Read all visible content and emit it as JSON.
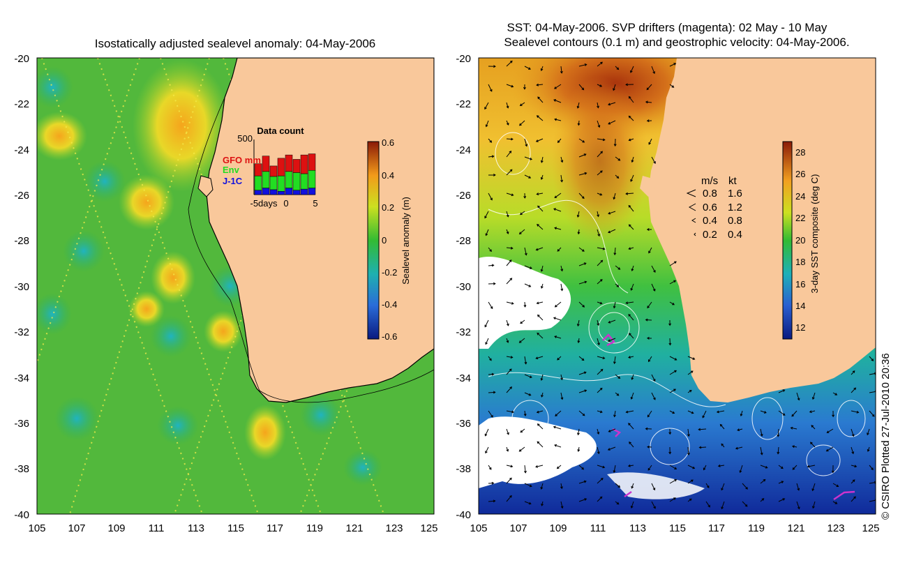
{
  "colors": {
    "land": "#f9c89b",
    "coast": "#000000",
    "sla_base": "#33b43a",
    "sst_white": "#ffffff",
    "drifter": "#cc33cc"
  },
  "left_panel": {
    "title": "Isostatically adjusted sealevel anomaly: 04-May-2006",
    "y_ticks": [
      "-20",
      "-22",
      "-24",
      "-26",
      "-28",
      "-30",
      "-32",
      "-34",
      "-36",
      "-38",
      "-40"
    ],
    "x_ticks": [
      "105",
      "107",
      "109",
      "111",
      "113",
      "115",
      "117",
      "119",
      "121",
      "123",
      "125"
    ],
    "colorbar": {
      "label": "Sealevel anomaly (m)",
      "ticks": [
        "0.6",
        "0.4",
        "0.2",
        "0",
        "-0.2",
        "-0.4",
        "-0.6"
      ],
      "range": [
        -0.6,
        0.6
      ]
    },
    "inset": {
      "title": "Data count",
      "y_max_label": "500",
      "x_labels": [
        "-5days",
        "0",
        "5"
      ],
      "legend": [
        {
          "name": "GFO mm",
          "color": "#dd1111"
        },
        {
          "name": "Env",
          "color": "#22dd22"
        },
        {
          "name": "J-1C",
          "color": "#1111dd"
        }
      ],
      "bars": [
        {
          "gfo": 110,
          "env": 130,
          "j1c": 40
        },
        {
          "gfo": 140,
          "env": 150,
          "j1c": 60
        },
        {
          "gfo": 95,
          "env": 120,
          "j1c": 45
        },
        {
          "gfo": 160,
          "env": 140,
          "j1c": 30
        },
        {
          "gfo": 150,
          "env": 150,
          "j1c": 60
        },
        {
          "gfo": 120,
          "env": 160,
          "j1c": 40
        },
        {
          "gfo": 170,
          "env": 140,
          "j1c": 50
        },
        {
          "gfo": 150,
          "env": 160,
          "j1c": 60
        }
      ]
    }
  },
  "right_panel": {
    "title_line1": "SST: 04-May-2006. SVP drifters (magenta): 02 May - 10 May",
    "title_line2": "Sealevel contours (0.1 m) and geostrophic velocity: 04-May-2006.",
    "y_ticks": [
      "-20",
      "-22",
      "-24",
      "-26",
      "-28",
      "-30",
      "-32",
      "-34",
      "-36",
      "-38",
      "-40"
    ],
    "x_ticks": [
      "105",
      "107",
      "109",
      "111",
      "113",
      "115",
      "117",
      "119",
      "121",
      "123",
      "125"
    ],
    "colorbar": {
      "label": "3-day SST composite (deg C)",
      "ticks": [
        "28",
        "26",
        "24",
        "22",
        "20",
        "18",
        "16",
        "14",
        "12"
      ],
      "range": [
        11,
        29
      ]
    },
    "velocity_legend": {
      "header_ms": "m/s",
      "header_kt": "kt",
      "rows": [
        {
          "ms": "0.8",
          "kt": "1.6"
        },
        {
          "ms": "0.6",
          "kt": "1.2"
        },
        {
          "ms": "0.4",
          "kt": "0.8"
        },
        {
          "ms": "0.2",
          "kt": "0.4"
        }
      ]
    }
  },
  "credit": "© CSIRO Plotted 27-Jul-2010 20:36"
}
